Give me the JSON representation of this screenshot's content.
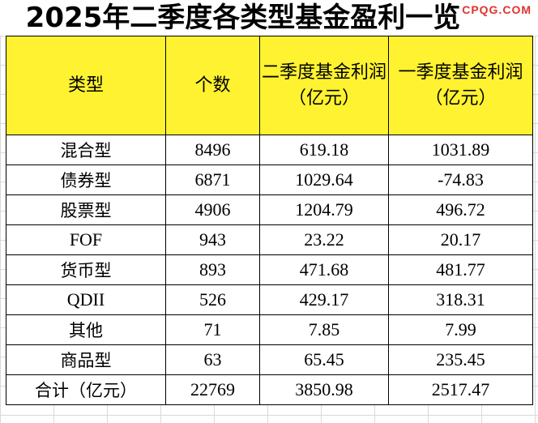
{
  "title": "2025年二季度各类型基金盈利一览",
  "watermark": "CPQG.COM",
  "headers": [
    "类型",
    "个数",
    "二季度基金利润（亿元）",
    "一季度基金利润（亿元）"
  ],
  "rows": [
    {
      "type": "混合型",
      "count": "8496",
      "q2": "619.18",
      "q1": "1031.89"
    },
    {
      "type": "债券型",
      "count": "6871",
      "q2": "1029.64",
      "q1": "-74.83"
    },
    {
      "type": "股票型",
      "count": "4906",
      "q2": "1204.79",
      "q1": "496.72"
    },
    {
      "type": "FOF",
      "count": "943",
      "q2": "23.22",
      "q1": "20.17"
    },
    {
      "type": "货币型",
      "count": "893",
      "q2": "471.68",
      "q1": "481.77"
    },
    {
      "type": "QDII",
      "count": "526",
      "q2": "429.17",
      "q1": "318.31"
    },
    {
      "type": "其他",
      "count": "71",
      "q2": "7.85",
      "q1": "7.99"
    },
    {
      "type": "商品型",
      "count": "63",
      "q2": "65.45",
      "q1": "235.45"
    }
  ],
  "total": {
    "type": "合计（亿元）",
    "count": "22769",
    "q2": "3850.98",
    "q1": "2517.47"
  },
  "colors": {
    "header_bg": "#fff230",
    "watermark": "#e0322d",
    "border": "#000000"
  }
}
